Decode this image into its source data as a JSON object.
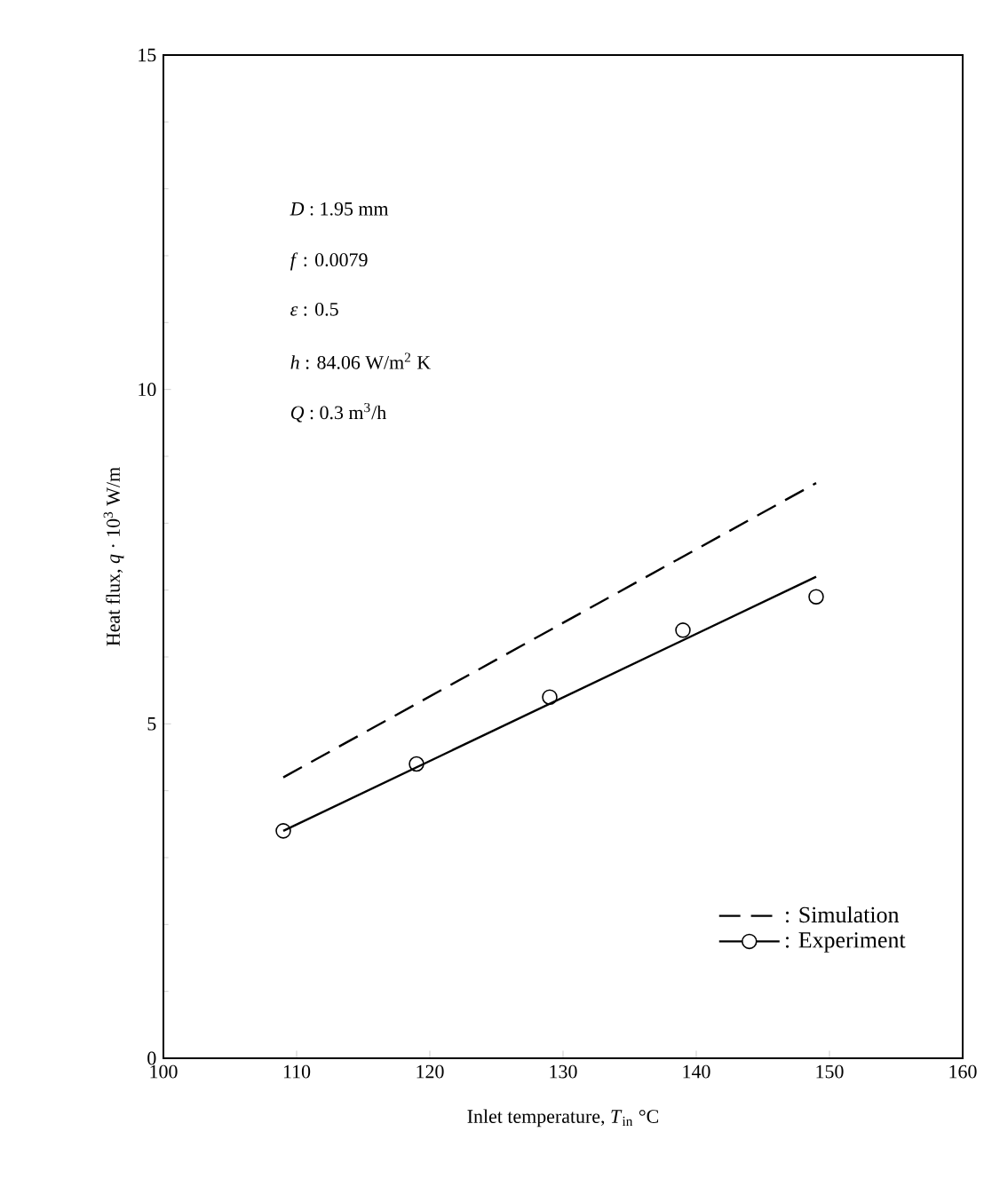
{
  "chart_data": {
    "type": "line",
    "xlabel": "Inlet temperature, *T*$_{in}$  °C",
    "ylabel": "Heat flux, *q* · 10$^{3}$  W/m",
    "annotations": [
      "*D* : 1.95 mm",
      "*f* : 0.0079",
      "*ε* : 0.5",
      "*h* : 84.06 W/m$^{2}$ K",
      "*Q* : 0.3 m$^{3}$/h"
    ],
    "xlim": [
      100,
      160
    ],
    "xticks": [
      100,
      110,
      120,
      130,
      140,
      150,
      160
    ],
    "ylim": [
      0,
      15
    ],
    "yticks": [
      0,
      5,
      10,
      15
    ],
    "grid": false,
    "legend": "bottom right",
    "series": [
      {
        "name": ": Simulation",
        "line_style": "dashed",
        "marker": "none",
        "color": "#000000",
        "x": [
          109,
          149
        ],
        "values": [
          4.2,
          8.6
        ]
      },
      {
        "line_style": "solid",
        "marker": "none",
        "color": "#000000",
        "x": [
          109,
          149
        ],
        "values": [
          3.4,
          7.2
        ]
      },
      {
        "name": ": Experiment",
        "type": "scatter",
        "marker": "circle",
        "color": "#000000",
        "x": [
          109,
          119,
          129,
          139,
          149
        ],
        "values": [
          3.4,
          4.4,
          5.4,
          6.4,
          6.9
        ]
      }
    ]
  }
}
